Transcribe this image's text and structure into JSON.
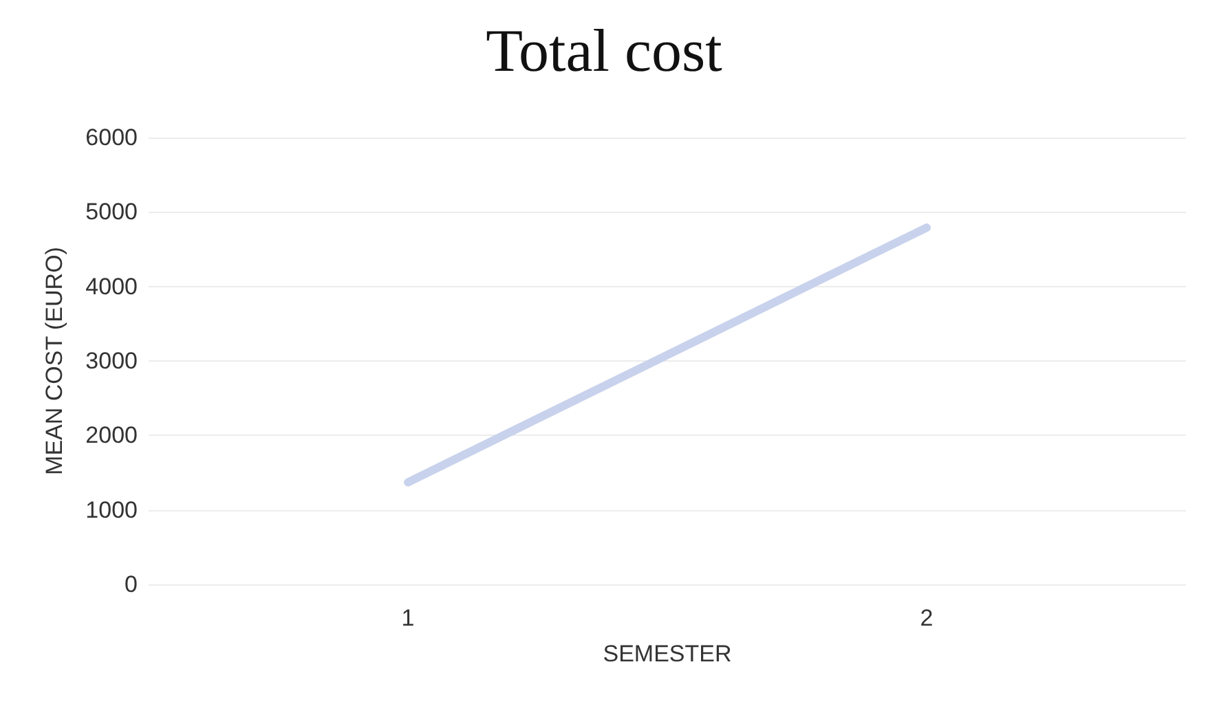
{
  "chart_data": {
    "type": "line",
    "title": "Total cost",
    "xlabel": "SEMESTER",
    "ylabel": "MEAN COST (EURO)",
    "categories": [
      "1",
      "2"
    ],
    "series": [
      {
        "color": "#c8d2ec",
        "values": [
          1370,
          4790
        ]
      }
    ],
    "ylim": [
      0,
      6000
    ],
    "yticks": [
      0,
      1000,
      2000,
      3000,
      4000,
      5000,
      6000
    ],
    "grid": "y",
    "marker": "none",
    "line_style": "solid"
  }
}
